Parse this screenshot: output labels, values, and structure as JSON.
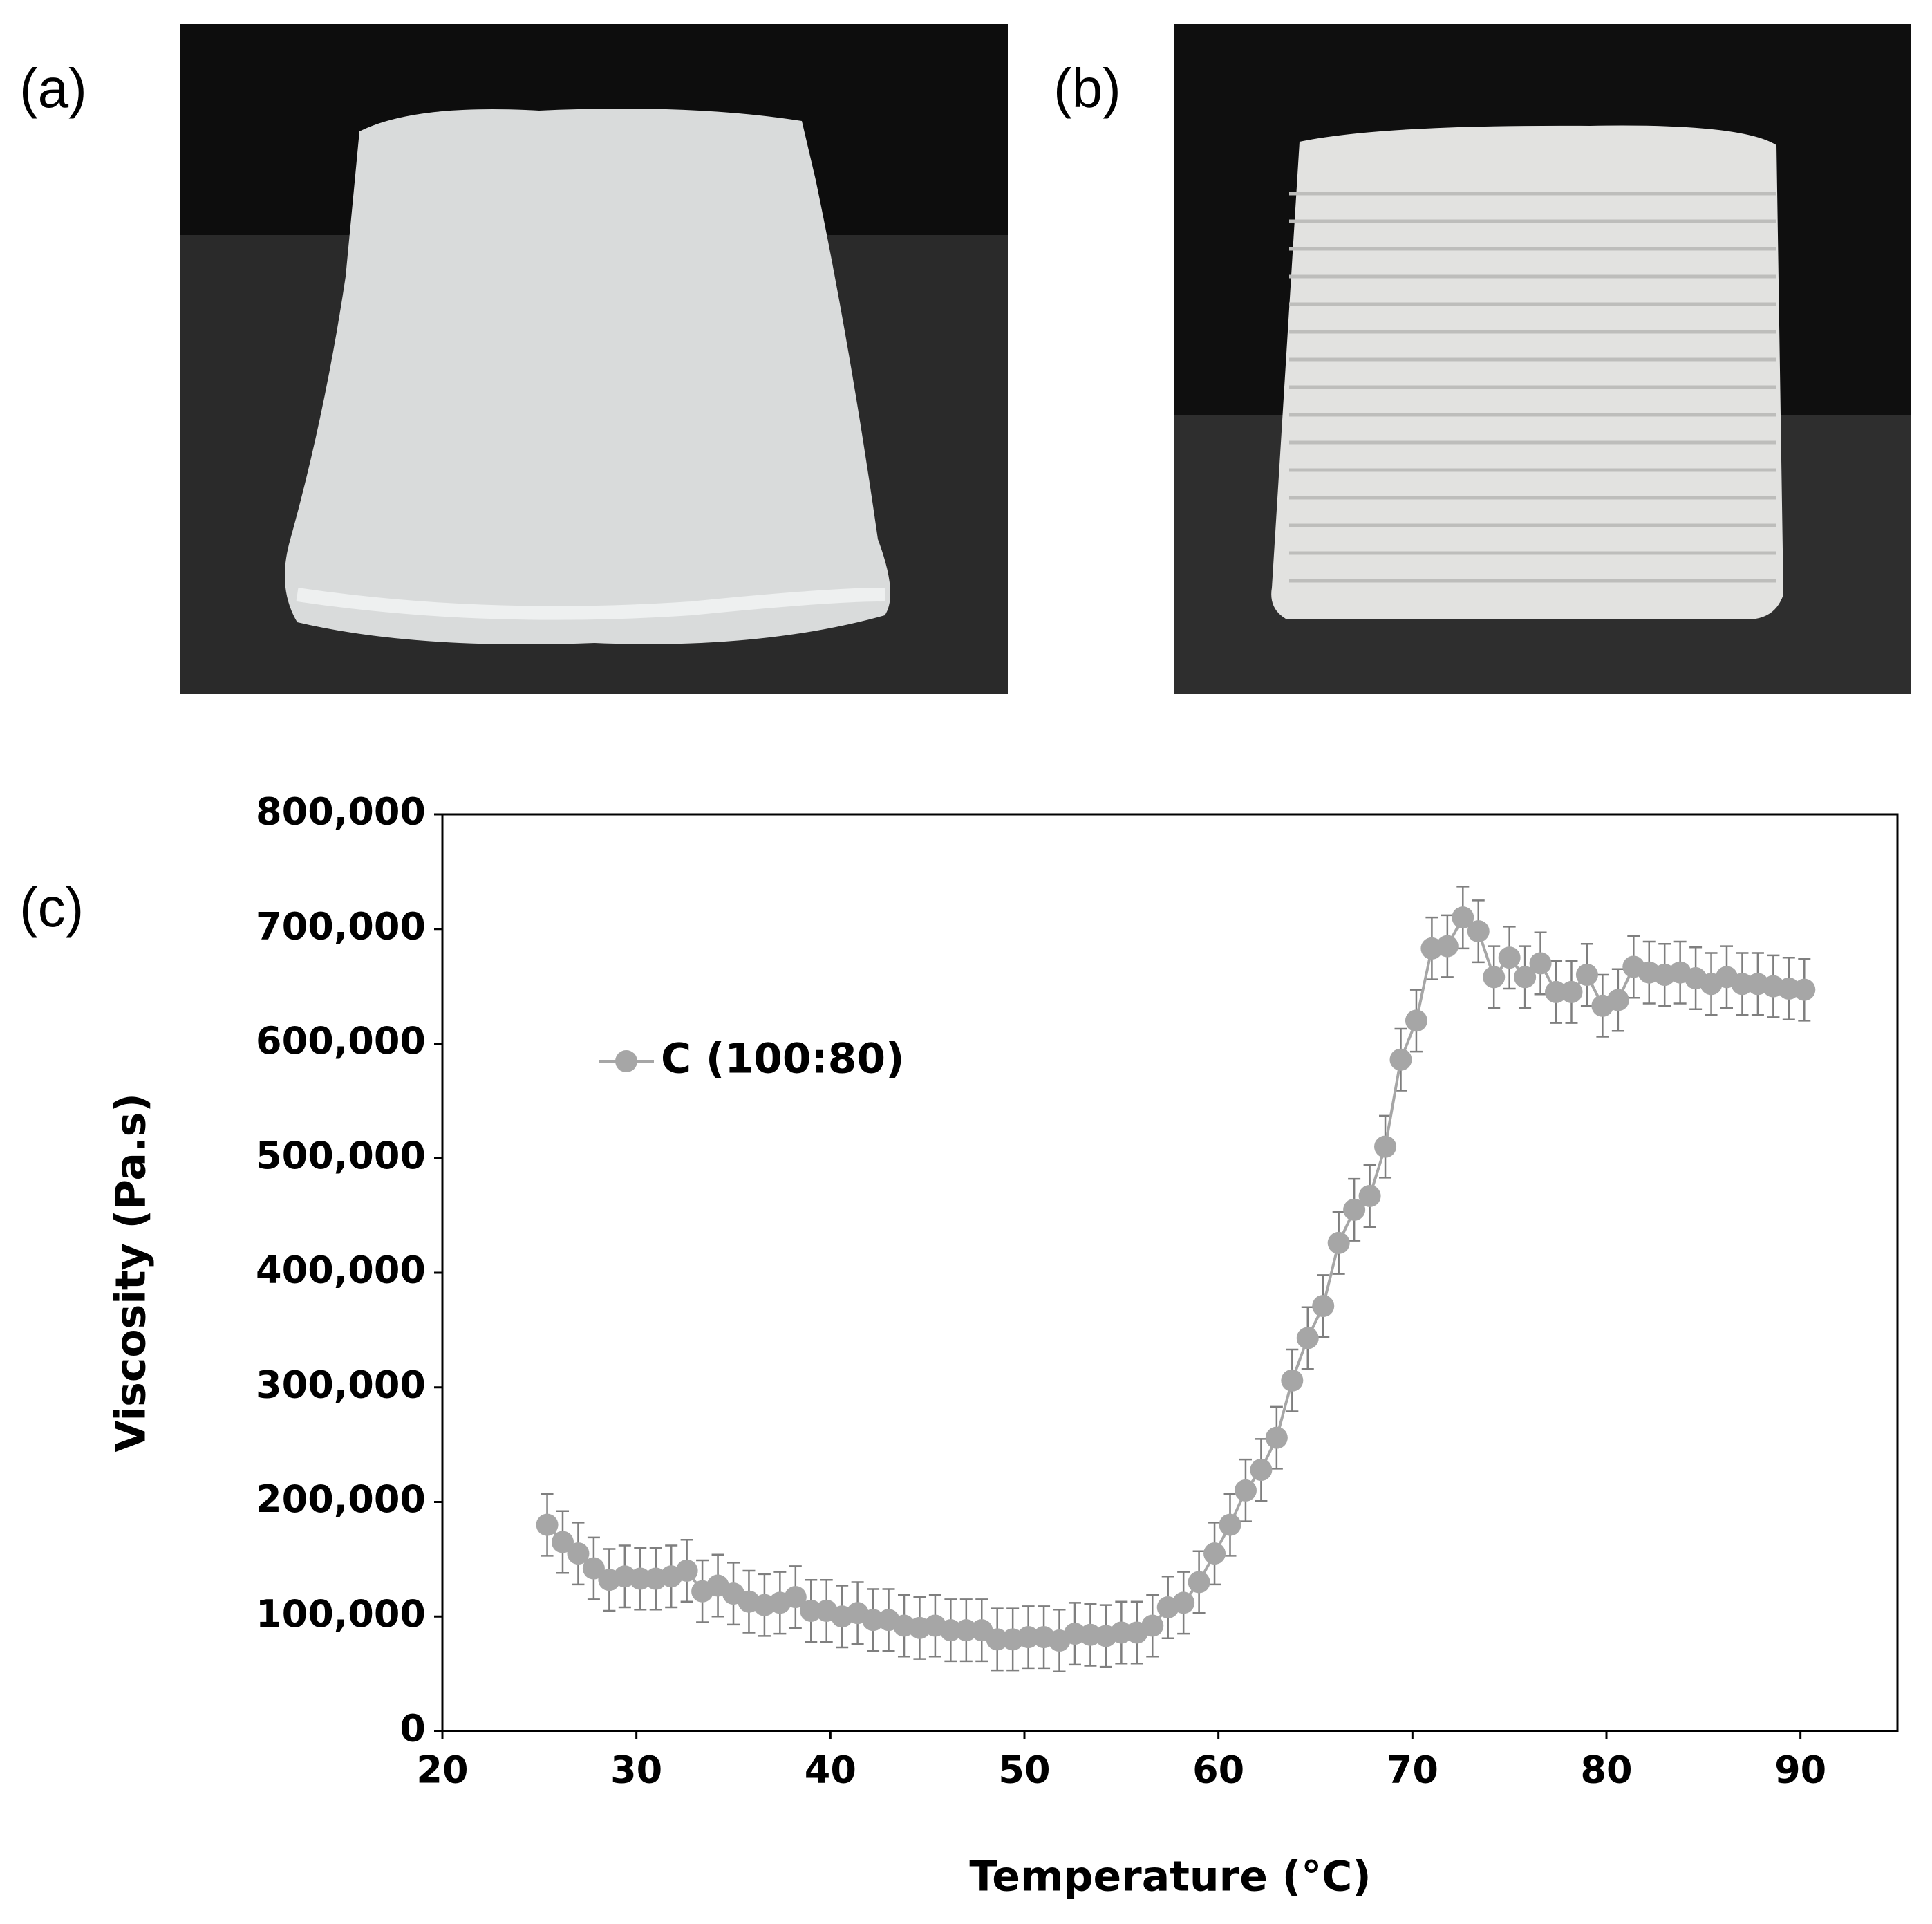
{
  "panel_labels": [
    "(a)",
    "(b)",
    "(c)"
  ],
  "chart_data": {
    "type": "line",
    "x_label": "Temperature (°C)",
    "y_label": "Viscosity (Pa.s)",
    "xlim": [
      20,
      95
    ],
    "xticks": [
      20,
      30,
      40,
      50,
      60,
      70,
      80,
      90
    ],
    "ylim": [
      0,
      800000
    ],
    "yticks": [
      0,
      {
        "value": 100000,
        "label": "100,000"
      },
      {
        "value": 200000,
        "label": "200,000"
      },
      {
        "value": 300000,
        "label": "300,000"
      },
      {
        "value": 400000,
        "label": "400,000"
      },
      {
        "value": 500000,
        "label": "500,000"
      },
      {
        "value": 600000,
        "label": "600,000"
      },
      {
        "value": 700000,
        "label": "700,000"
      },
      {
        "value": 800000,
        "label": "800,000"
      }
    ],
    "x": [
      25.4,
      26.2,
      27.0,
      27.8,
      28.6,
      29.4,
      30.2,
      31.0,
      31.8,
      32.6,
      33.4,
      34.2,
      35.0,
      35.8,
      36.6,
      37.4,
      38.2,
      39.0,
      39.8,
      40.6,
      41.4,
      42.2,
      43.0,
      43.8,
      44.6,
      45.4,
      46.2,
      47.0,
      47.8,
      48.6,
      49.4,
      50.2,
      51.0,
      51.8,
      52.6,
      53.4,
      54.2,
      55.0,
      55.8,
      56.6,
      57.4,
      58.2,
      59.0,
      59.8,
      60.6,
      61.4,
      62.2,
      63.0,
      63.8,
      64.6,
      65.4,
      66.2,
      67.0,
      67.8,
      68.6,
      69.4,
      70.2,
      71.0,
      71.8,
      72.6,
      73.4,
      74.2,
      75.0,
      75.8,
      76.6,
      77.4,
      78.2,
      79.0,
      79.8,
      80.6,
      81.4,
      82.2,
      83.0,
      83.8,
      84.6,
      85.4,
      86.2,
      87.0,
      87.8,
      88.6,
      89.4,
      90.2
    ],
    "series": [
      {
        "name": "C (100:80)",
        "color": "#a6a6a6",
        "values": [
          180000,
          165000,
          155000,
          142000,
          132000,
          135000,
          133000,
          133000,
          135000,
          140000,
          122000,
          127000,
          120000,
          113000,
          110000,
          112000,
          117000,
          105000,
          105000,
          100000,
          103000,
          97000,
          97000,
          92000,
          90000,
          92000,
          88000,
          88000,
          88000,
          80000,
          80000,
          82000,
          82000,
          79000,
          85000,
          84000,
          83000,
          86000,
          86000,
          92000,
          108000,
          112000,
          130000,
          155000,
          180000,
          210000,
          228000,
          256000,
          306000,
          343000,
          371000,
          426000,
          455000,
          467000,
          510000,
          586000,
          620000,
          683000,
          685000,
          710000,
          698000,
          658000,
          675000,
          658000,
          670000,
          645000,
          645000,
          660000,
          633000,
          638000,
          667000,
          662000,
          660000,
          662000,
          657000,
          652000,
          658000,
          652000,
          652000,
          650000,
          648000,
          647000
        ],
        "errors": [
          27000,
          27000,
          27000,
          27000,
          27000,
          27000,
          27000,
          27000,
          27000,
          27000,
          27000,
          27000,
          27000,
          27000,
          27000,
          27000,
          27000,
          27000,
          27000,
          27000,
          27000,
          27000,
          27000,
          27000,
          27000,
          27000,
          27000,
          27000,
          27000,
          27000,
          27000,
          27000,
          27000,
          27000,
          27000,
          27000,
          27000,
          27000,
          27000,
          27000,
          27000,
          27000,
          27000,
          27000,
          27000,
          27000,
          27000,
          27000,
          27000,
          27000,
          27000,
          27000,
          27000,
          27000,
          27000,
          27000,
          27000,
          27000,
          27000,
          27000,
          27000,
          27000,
          27000,
          27000,
          27000,
          27000,
          27000,
          27000,
          27000,
          27000,
          27000,
          27000,
          27000,
          27000,
          27000,
          27000,
          27000,
          27000,
          27000,
          27000,
          27000,
          27000
        ]
      }
    ]
  }
}
